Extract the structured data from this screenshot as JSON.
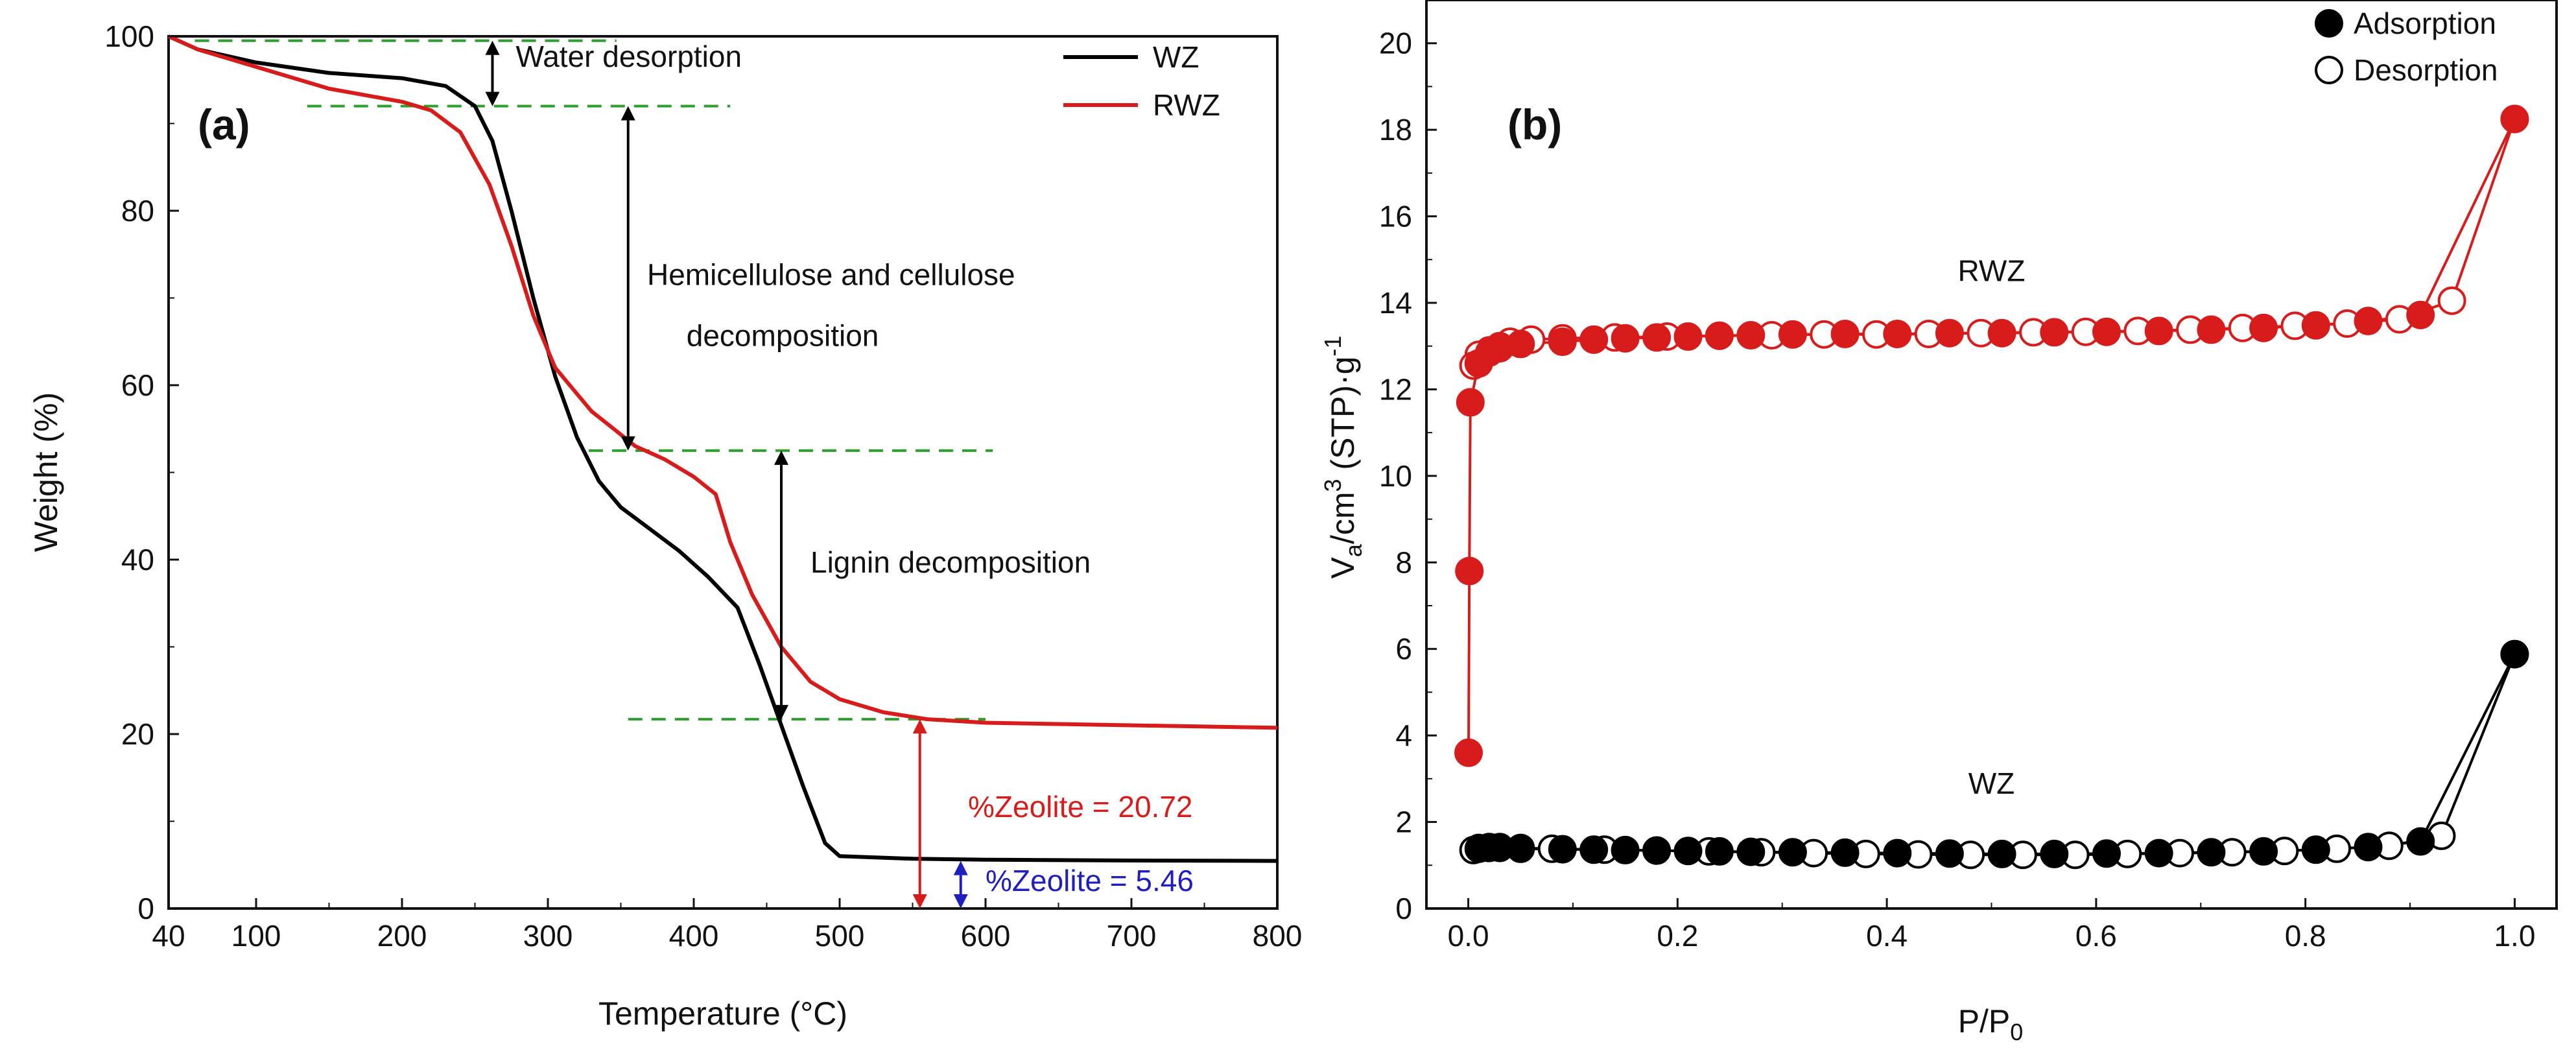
{
  "chart_data": [
    {
      "type": "line",
      "panel_label": "(a)",
      "title": "",
      "xlabel": "Temperature (°C)",
      "ylabel": "Weight (%)",
      "xlim": [
        40,
        800
      ],
      "ylim": [
        0,
        100
      ],
      "xticks": [
        "40",
        "100",
        "200",
        "300",
        "400",
        "500",
        "600",
        "700",
        "800"
      ],
      "xtick_values": [
        40,
        100,
        200,
        300,
        400,
        500,
        600,
        700,
        800
      ],
      "yticks": [
        "0",
        "20",
        "40",
        "60",
        "80",
        "100"
      ],
      "ytick_values": [
        0,
        20,
        40,
        60,
        80,
        100
      ],
      "legend_position": "top-right",
      "colors": {
        "WZ": "#000000",
        "RWZ": "#d81b1b",
        "guide": "#2ca02c",
        "blue": "#1f1fbf"
      },
      "series": [
        {
          "name": "WZ",
          "x": [
            40,
            60,
            100,
            150,
            200,
            230,
            250,
            262,
            275,
            290,
            305,
            320,
            335,
            350,
            370,
            390,
            410,
            430,
            445,
            460,
            475,
            490,
            500,
            550,
            600,
            700,
            800
          ],
          "y": [
            100,
            98.5,
            97,
            95.8,
            95.2,
            94.3,
            92,
            88,
            80,
            70,
            61,
            54,
            49,
            46,
            43.5,
            41,
            38,
            34.5,
            28,
            21,
            14,
            7.5,
            6.0,
            5.7,
            5.6,
            5.5,
            5.46
          ]
        },
        {
          "name": "RWZ",
          "x": [
            40,
            60,
            100,
            150,
            200,
            220,
            240,
            260,
            275,
            290,
            305,
            320,
            330,
            345,
            360,
            380,
            400,
            415,
            425,
            440,
            460,
            480,
            500,
            530,
            560,
            600,
            700,
            800
          ],
          "y": [
            100,
            98.5,
            96.5,
            94,
            92.5,
            91.5,
            89,
            83,
            76,
            68,
            62,
            59,
            57,
            55,
            53,
            51.5,
            49.5,
            47.5,
            42,
            36,
            30,
            26,
            24,
            22.5,
            21.7,
            21.3,
            21.0,
            20.72
          ]
        }
      ],
      "guides": [
        {
          "x": [
            58,
            347
          ],
          "y": 99.5
        },
        {
          "x": [
            135,
            425
          ],
          "y": 92
        },
        {
          "x": [
            328,
            605
          ],
          "y": 52.5
        },
        {
          "x": [
            355,
            600
          ],
          "y": 21.7
        }
      ],
      "arrows": [
        {
          "x": 262,
          "y1": 99.5,
          "y2": 92,
          "color": "black"
        },
        {
          "x": 355,
          "y1": 92,
          "y2": 52.5,
          "color": "black"
        },
        {
          "x": 460,
          "y1": 52.5,
          "y2": 21.7,
          "color": "black"
        },
        {
          "x": 555,
          "y1": 21.7,
          "y2": 0,
          "color": "red"
        },
        {
          "x": 583,
          "y1": 5.46,
          "y2": 0,
          "color": "blue"
        }
      ],
      "annotations": [
        {
          "text": "Water desorption",
          "x": 278,
          "y": 96.5
        },
        {
          "text": "Hemicellulose and cellulose",
          "x": 368,
          "y": 71.5
        },
        {
          "text": "decomposition",
          "x": 395,
          "y": 64.5
        },
        {
          "text": "Lignin decomposition",
          "x": 480,
          "y": 38.5
        },
        {
          "text": "%Zeolite = 20.72",
          "x": 588,
          "y": 10.5,
          "color": "red"
        },
        {
          "text": "%Zeolite = 5.46",
          "x": 600,
          "y": 2.0,
          "color": "blue"
        }
      ]
    },
    {
      "type": "scatter",
      "panel_label": "(b)",
      "title": "",
      "xlabel": "P/P",
      "xlabel_sub": "0",
      "ylabel": "V",
      "ylabel_parts": [
        "V",
        "a",
        "/cm",
        "3",
        " (STP)·g",
        "-1"
      ],
      "xlim": [
        -0.04,
        1.04
      ],
      "ylim": [
        0,
        21
      ],
      "xticks": [
        "0.0",
        "0.2",
        "0.4",
        "0.6",
        "0.8",
        "1.0"
      ],
      "xtick_values": [
        0.0,
        0.2,
        0.4,
        0.6,
        0.8,
        1.0
      ],
      "yticks": [
        "0",
        "2",
        "4",
        "6",
        "8",
        "10",
        "12",
        "14",
        "16",
        "18",
        "20"
      ],
      "ytick_values": [
        0,
        2,
        4,
        6,
        8,
        10,
        12,
        14,
        16,
        18,
        20
      ],
      "legend": [
        "Adsorption",
        "Desorption"
      ],
      "legend_position": "top-right",
      "series_labels": [
        {
          "text": "RWZ",
          "x": 0.5,
          "y": 14.5
        },
        {
          "text": "WZ",
          "x": 0.5,
          "y": 2.65
        }
      ],
      "series": [
        {
          "name": "RWZ adsorption",
          "color": "#d81b1b",
          "filled": true,
          "x": [
            0.0003,
            0.001,
            0.002,
            0.01,
            0.02,
            0.03,
            0.05,
            0.09,
            0.12,
            0.15,
            0.18,
            0.21,
            0.24,
            0.27,
            0.31,
            0.36,
            0.41,
            0.46,
            0.51,
            0.56,
            0.61,
            0.66,
            0.71,
            0.76,
            0.81,
            0.86,
            0.91,
            1.0
          ],
          "y": [
            3.6,
            7.8,
            11.7,
            12.6,
            12.85,
            12.95,
            13.05,
            13.1,
            13.15,
            13.18,
            13.2,
            13.22,
            13.24,
            13.25,
            13.27,
            13.28,
            13.28,
            13.3,
            13.3,
            13.32,
            13.33,
            13.35,
            13.38,
            13.42,
            13.48,
            13.58,
            13.72,
            18.25
          ]
        },
        {
          "name": "RWZ desorption",
          "color": "#d81b1b",
          "filled": false,
          "x": [
            1.0,
            0.94,
            0.89,
            0.84,
            0.79,
            0.74,
            0.69,
            0.64,
            0.59,
            0.54,
            0.49,
            0.44,
            0.39,
            0.34,
            0.29,
            0.24,
            0.19,
            0.14,
            0.09,
            0.06,
            0.04,
            0.03,
            0.02,
            0.01,
            0.005
          ],
          "y": [
            18.25,
            14.05,
            13.62,
            13.52,
            13.47,
            13.42,
            13.38,
            13.35,
            13.33,
            13.32,
            13.3,
            13.28,
            13.27,
            13.27,
            13.25,
            13.24,
            13.22,
            13.2,
            13.18,
            13.15,
            13.1,
            13.0,
            12.9,
            12.8,
            12.55
          ]
        },
        {
          "name": "WZ adsorption",
          "color": "#000000",
          "filled": true,
          "x": [
            0.01,
            0.02,
            0.03,
            0.05,
            0.09,
            0.12,
            0.15,
            0.18,
            0.21,
            0.24,
            0.27,
            0.31,
            0.36,
            0.41,
            0.46,
            0.51,
            0.56,
            0.61,
            0.66,
            0.71,
            0.76,
            0.81,
            0.86,
            0.91,
            1.0
          ],
          "y": [
            1.38,
            1.4,
            1.4,
            1.38,
            1.37,
            1.36,
            1.35,
            1.34,
            1.33,
            1.32,
            1.31,
            1.3,
            1.29,
            1.28,
            1.27,
            1.26,
            1.26,
            1.27,
            1.28,
            1.3,
            1.32,
            1.36,
            1.42,
            1.55,
            5.88
          ]
        },
        {
          "name": "WZ desorption",
          "color": "#000000",
          "filled": false,
          "x": [
            1.0,
            0.93,
            0.88,
            0.83,
            0.78,
            0.73,
            0.68,
            0.63,
            0.58,
            0.53,
            0.48,
            0.43,
            0.38,
            0.33,
            0.28,
            0.23,
            0.18,
            0.13,
            0.08,
            0.05,
            0.03,
            0.02,
            0.01,
            0.005
          ],
          "y": [
            5.88,
            1.68,
            1.45,
            1.38,
            1.33,
            1.3,
            1.28,
            1.26,
            1.24,
            1.24,
            1.24,
            1.25,
            1.26,
            1.28,
            1.3,
            1.32,
            1.34,
            1.36,
            1.38,
            1.4,
            1.42,
            1.42,
            1.4,
            1.35
          ]
        }
      ]
    }
  ]
}
